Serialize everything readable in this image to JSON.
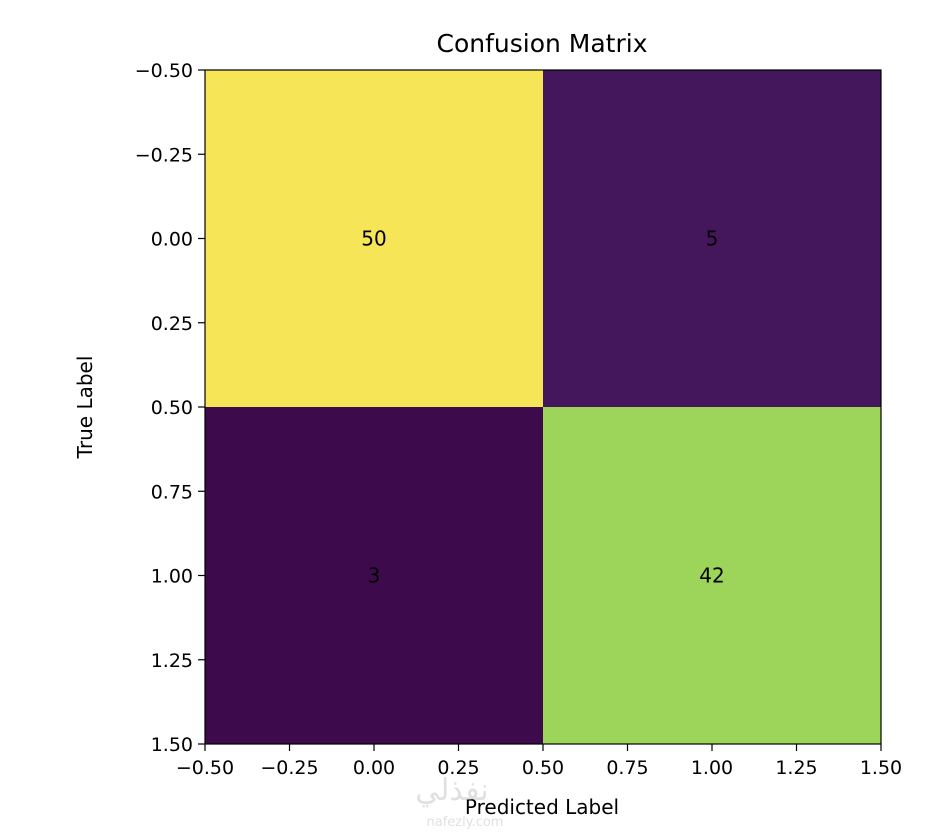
{
  "chart_data": {
    "type": "heatmap",
    "title": "Confusion Matrix",
    "xlabel": "Predicted Label",
    "ylabel": "True Label",
    "matrix": [
      [
        50,
        5
      ],
      [
        3,
        42
      ]
    ],
    "xlim": [
      -0.5,
      1.5
    ],
    "ylim": [
      1.5,
      -0.5
    ],
    "xticks": [
      "−0.50",
      "−0.25",
      "0.00",
      "0.25",
      "0.50",
      "0.75",
      "1.00",
      "1.25",
      "1.50"
    ],
    "yticks": [
      "−0.50",
      "−0.25",
      "0.00",
      "0.25",
      "0.50",
      "0.75",
      "1.00",
      "1.25",
      "1.50"
    ],
    "colormap": "viridis",
    "colors": {
      "cell_50": "#f5e557",
      "cell_5": "#44165c",
      "cell_3": "#3d0a4c",
      "cell_42": "#9dd55b"
    },
    "grid": false
  },
  "watermark": {
    "text_arabic": "نفذلي",
    "text_url": "nafezly.com"
  }
}
